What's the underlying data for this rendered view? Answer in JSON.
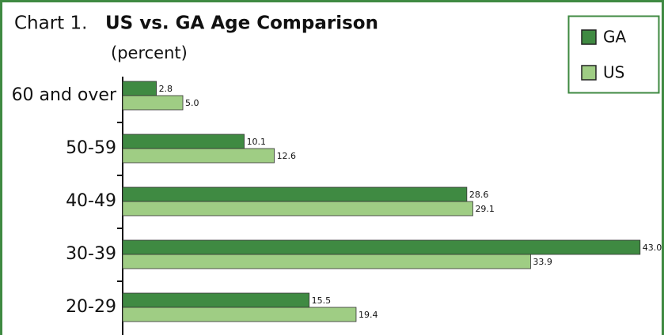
{
  "chart_data": {
    "type": "bar",
    "orientation": "horizontal",
    "chart_label": "Chart 1.",
    "title": "US vs. GA Age Comparison",
    "subtitle": "(percent)",
    "categories": [
      "60 and over",
      "50-59",
      "40-49",
      "30-39",
      "20-29"
    ],
    "series": [
      {
        "name": "GA",
        "color": "#3f8a42",
        "values": [
          2.8,
          10.1,
          28.6,
          43,
          15.5
        ],
        "value_labels": [
          "2.8",
          "10.1",
          "28.6",
          "43.0",
          "15.5"
        ]
      },
      {
        "name": "US",
        "color": "#9fcd84",
        "values": [
          5,
          12.6,
          29.1,
          33.9,
          19.4
        ],
        "value_labels": [
          "5.0",
          "12.6",
          "29.1",
          "33.9",
          "19.4"
        ]
      }
    ],
    "xlim": [
      0,
      44
    ],
    "legend": "top-right"
  }
}
